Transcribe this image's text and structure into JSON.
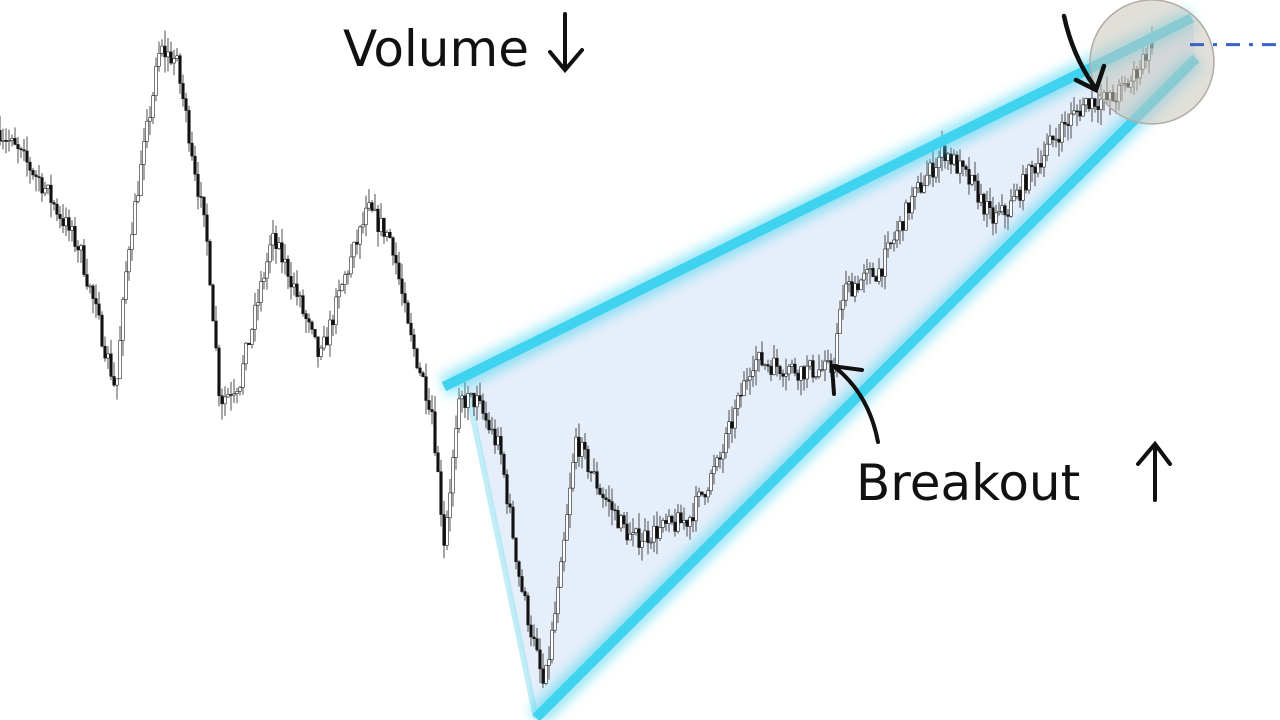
{
  "chart_data": {
    "type": "candlestick",
    "title": "",
    "xlabel": "",
    "ylabel": "",
    "xlim": [
      0,
      320
    ],
    "ylim": [
      0,
      100
    ],
    "grid": false,
    "price_path": {
      "x": [
        0,
        10,
        20,
        29,
        32,
        40,
        44,
        48,
        52,
        55,
        60,
        68,
        72,
        80,
        86,
        92,
        98,
        102,
        108,
        111,
        115,
        119,
        125,
        130,
        136,
        140,
        144,
        150,
        158,
        165,
        172,
        180,
        188,
        200,
        208,
        211,
        220,
        228,
        236,
        244,
        248,
        252,
        258,
        265,
        272,
        278,
        283,
        288
      ],
      "y": [
        81.9,
        75,
        65.3,
        45.8,
        65.3,
        93.1,
        91.7,
        79.2,
        65.3,
        44.4,
        47.2,
        66.7,
        62.5,
        50,
        61.1,
        70.8,
        66.7,
        54.2,
        43.1,
        25,
        44.4,
        44.4,
        37.5,
        19.4,
        4.2,
        19.4,
        38.9,
        31.9,
        25,
        26.4,
        27.8,
        36.1,
        50,
        48.6,
        48.6,
        59.7,
        62.5,
        72.2,
        79.2,
        73.6,
        69.4,
        70.8,
        76.4,
        81.9,
        86.1,
        86.1,
        88.9,
        94.4
      ]
    },
    "wedge": {
      "upper_line": {
        "from": [
          111,
          46.3
        ],
        "to": [
          298,
          97.5
        ]
      },
      "lower_line": {
        "from": [
          134,
          0.3
        ],
        "to": [
          299,
          91.9
        ]
      },
      "line_color": "#3fd3f0",
      "fill_color": "#e6eefa"
    },
    "annotations": [
      {
        "text": "Volume",
        "arrow": "down"
      },
      {
        "text": "Breakout",
        "arrow": "up"
      }
    ],
    "target_circle": {
      "center": [
        288,
        91.4
      ],
      "color": "#c8c4bc"
    },
    "target_line": {
      "y": 93.8,
      "style": "dash-dot",
      "color": "#3a63c8"
    },
    "up_color": "#ffffff",
    "down_color": "#111111"
  }
}
